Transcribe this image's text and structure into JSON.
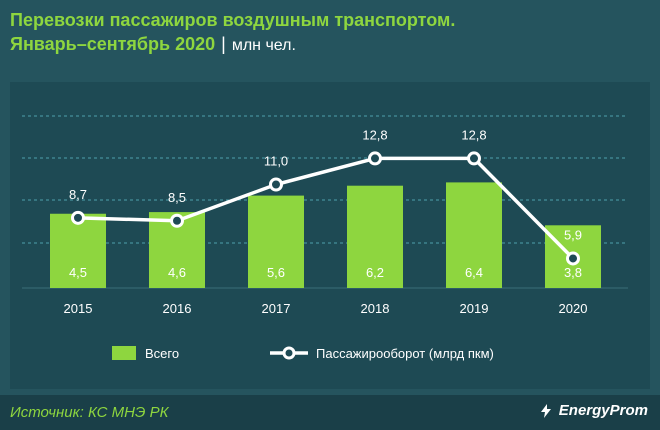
{
  "title_line1": "Перевозки пассажиров воздушным транспортом.",
  "title_line2": "Январь–сентябрь 2020",
  "title_sep": "|",
  "title_unit": "млн чел.",
  "source": "Источник: КС МНЭ РК",
  "brand": "EnergyProm",
  "colors": {
    "background": "#25545e",
    "panel": "#1e4a54",
    "bar": "#8ed63f",
    "line": "#ffffff",
    "title": "#8ed63f"
  },
  "chart_data": {
    "type": "bar",
    "categories": [
      "2015",
      "2016",
      "2017",
      "2018",
      "2019",
      "2020"
    ],
    "series": [
      {
        "name": "Всего",
        "type": "bar",
        "values": [
          4.5,
          4.6,
          5.6,
          6.2,
          6.4,
          3.8
        ],
        "labels": [
          "4,5",
          "4,6",
          "5,6",
          "6,2",
          "6,4",
          "3,8"
        ]
      },
      {
        "name": "Пассажирооборот (млрд пкм)",
        "type": "line",
        "values": [
          8.7,
          8.5,
          11.0,
          12.8,
          12.8,
          5.9
        ],
        "labels": [
          "8,7",
          "8,5",
          "11,0",
          "12,8",
          "12,8",
          "5,9"
        ]
      }
    ],
    "legend_position": "bottom",
    "grid": "dashed horizontal"
  }
}
